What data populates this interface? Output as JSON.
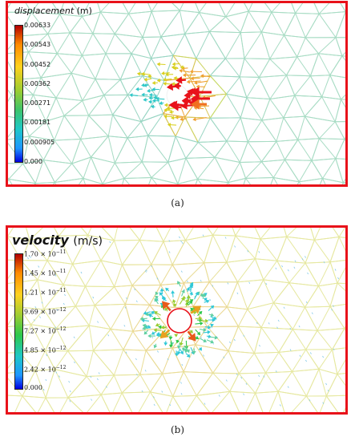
{
  "panel_a": {
    "caption": "(a)",
    "title_var": "displacement",
    "title_unit": "(m)",
    "ticks": [
      "0.00633",
      "0.00543",
      "0.00452",
      "0.00362",
      "0.00271",
      "0.00181",
      "0.000905",
      "0.000"
    ],
    "colors": {
      "border": "#e8121a",
      "mesh_light": "#9fd8c4",
      "mesh_hot": "#f0a030",
      "arrow_hot": "#e8121a"
    }
  },
  "panel_b": {
    "caption": "(b)",
    "title_var": "velocity",
    "title_unit": "(m/s)",
    "ticks": [
      {
        "mant": "1.70",
        "exp": "−11"
      },
      {
        "mant": "1.45",
        "exp": "−11"
      },
      {
        "mant": "1.21",
        "exp": "−11"
      },
      {
        "mant": "9.69",
        "exp": "−12"
      },
      {
        "mant": "7.27",
        "exp": "−12"
      },
      {
        "mant": "4.85",
        "exp": "−12"
      },
      {
        "mant": "2.42",
        "exp": "−12"
      },
      {
        "mant": "0.000",
        "exp": ""
      }
    ],
    "times_label": "× 10",
    "colors": {
      "border": "#e8121a",
      "mesh_light": "#d8e08a",
      "arrow_hot": "#e85a1a",
      "arrow_green": "#2ec84a"
    }
  }
}
